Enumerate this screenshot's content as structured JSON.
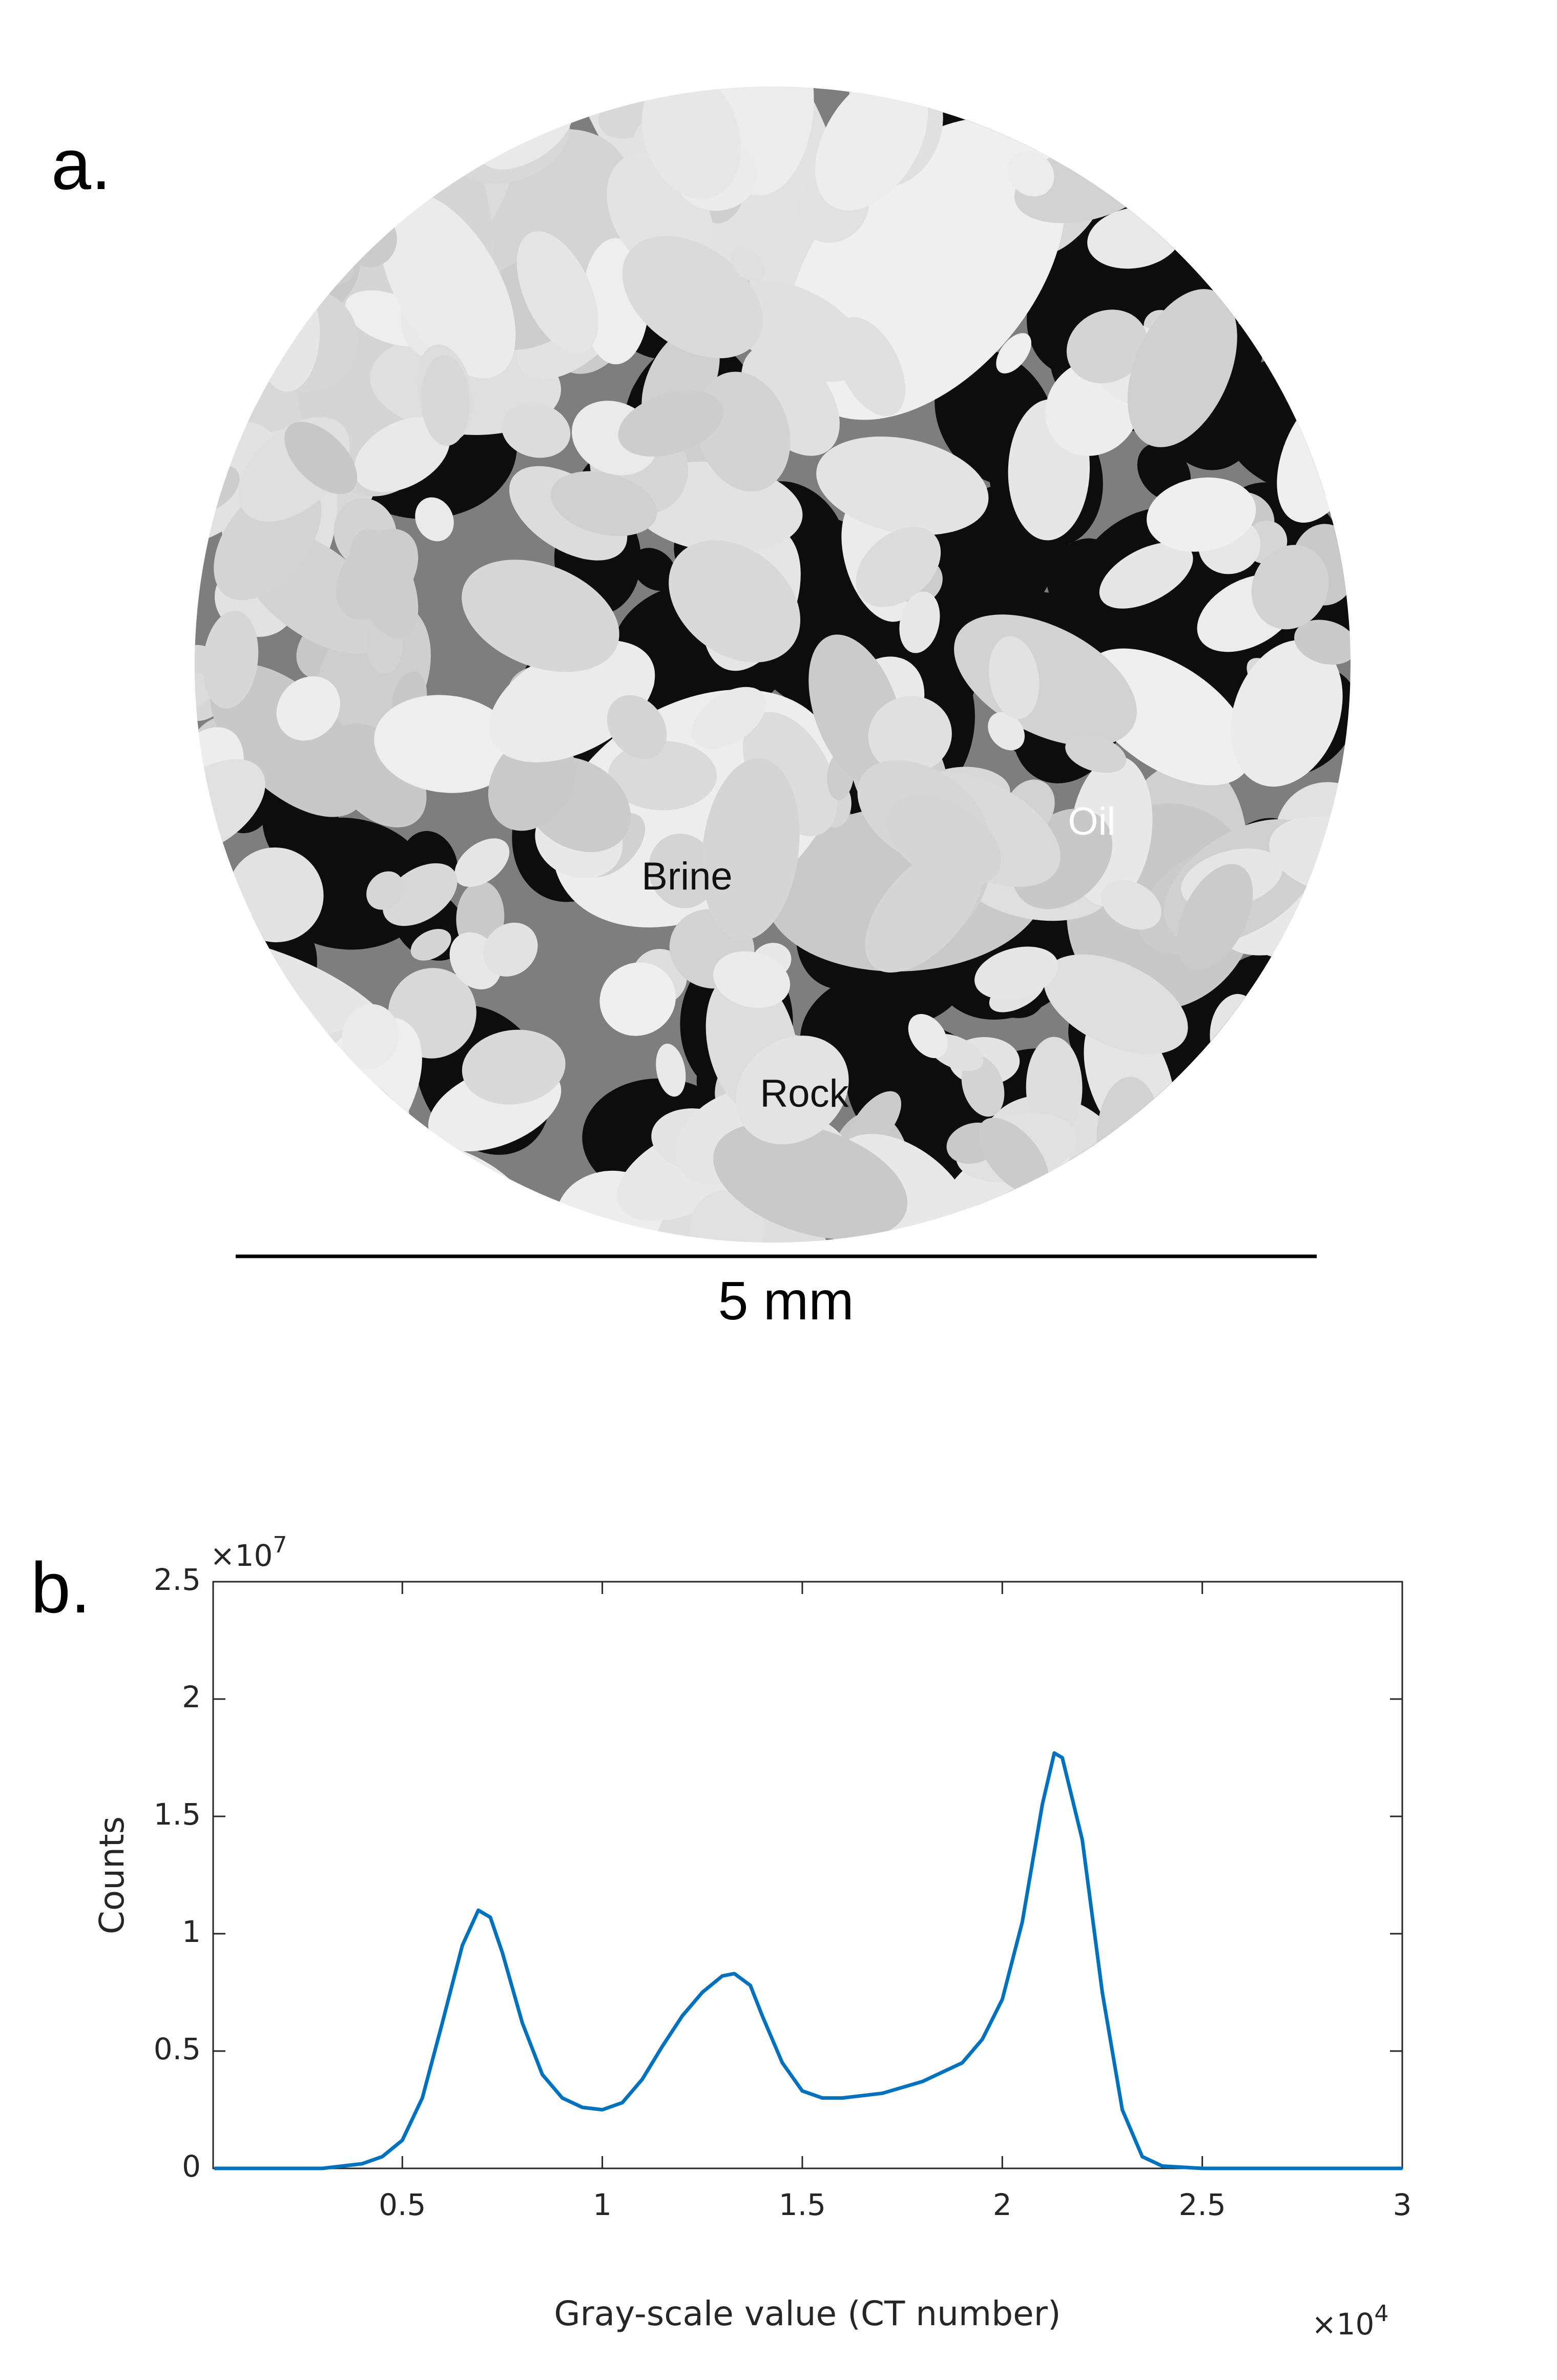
{
  "panel_a": {
    "label": "a.",
    "annotations": [
      "Brine",
      "Oil",
      "Rock"
    ],
    "scale_bar": "5 mm"
  },
  "chart_data": {
    "type": "line",
    "panel_label": "b.",
    "x_label": "Gray-scale value (CT number)",
    "y_label": "Counts",
    "x_multiplier": {
      "base": "×10",
      "exponent": "4"
    },
    "y_multiplier": {
      "base": "×10",
      "exponent": "7"
    },
    "x": [
      0.03,
      0.1,
      0.2,
      0.3,
      0.4,
      0.45,
      0.5,
      0.55,
      0.6,
      0.65,
      0.69,
      0.72,
      0.75,
      0.8,
      0.85,
      0.9,
      0.95,
      1.0,
      1.05,
      1.1,
      1.15,
      1.2,
      1.25,
      1.3,
      1.33,
      1.37,
      1.4,
      1.45,
      1.5,
      1.55,
      1.6,
      1.7,
      1.8,
      1.9,
      1.95,
      2.0,
      2.05,
      2.1,
      2.13,
      2.15,
      2.2,
      2.25,
      2.3,
      2.35,
      2.4,
      2.5,
      3.0
    ],
    "series": [
      {
        "color": "#0072bd",
        "values": [
          0,
          0,
          0,
          0,
          0.02,
          0.05,
          0.12,
          0.3,
          0.62,
          0.95,
          1.1,
          1.07,
          0.92,
          0.62,
          0.4,
          0.3,
          0.26,
          0.25,
          0.28,
          0.38,
          0.52,
          0.65,
          0.75,
          0.82,
          0.83,
          0.78,
          0.65,
          0.45,
          0.33,
          0.3,
          0.3,
          0.32,
          0.37,
          0.45,
          0.55,
          0.72,
          1.05,
          1.55,
          1.77,
          1.75,
          1.4,
          0.75,
          0.25,
          0.05,
          0.01,
          0,
          0
        ]
      }
    ],
    "xlim": [
      0.027,
      3
    ],
    "ylim": [
      0,
      2.5
    ],
    "xticks": [
      0.5,
      1,
      1.5,
      2,
      2.5,
      3
    ],
    "yticks": [
      0,
      0.5,
      1,
      1.5,
      2,
      2.5
    ],
    "grid": false
  }
}
